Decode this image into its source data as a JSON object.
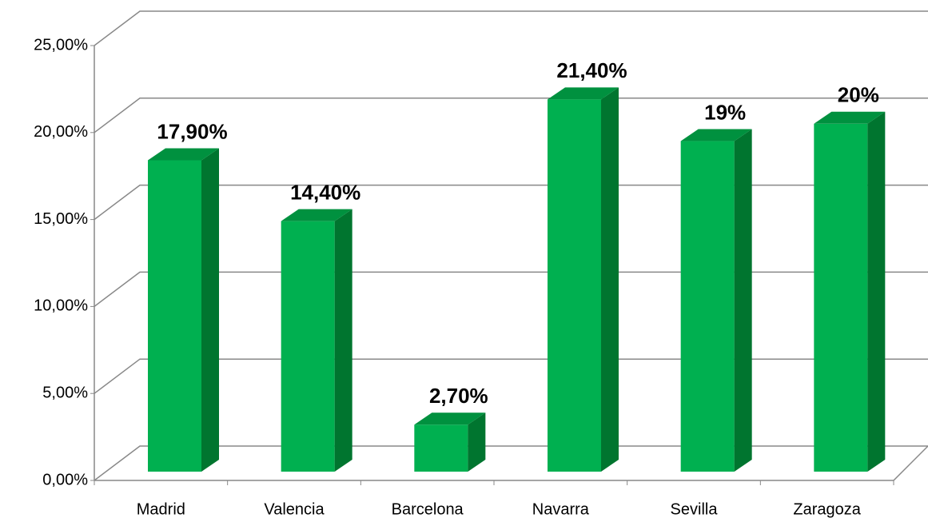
{
  "chart_data": {
    "type": "bar3d",
    "categories": [
      "Madrid",
      "Valencia",
      "Barcelona",
      "Navarra",
      "Sevilla",
      "Zaragoza"
    ],
    "values": [
      17.9,
      14.4,
      2.7,
      21.4,
      19,
      20
    ],
    "value_labels": [
      "17,90%",
      "14,40%",
      "2,70%",
      "21,40%",
      "19%",
      "20%"
    ],
    "color": "#00b050",
    "ylim": [
      0,
      25
    ],
    "yticks": [
      {
        "value": 0,
        "label": "0,00%"
      },
      {
        "value": 5,
        "label": "5,00%"
      },
      {
        "value": 10,
        "label": "10,00%"
      },
      {
        "value": 15,
        "label": "15,00%"
      },
      {
        "value": 20,
        "label": "20,00%"
      },
      {
        "value": 25,
        "label": "25,00%"
      }
    ],
    "grid": true
  }
}
